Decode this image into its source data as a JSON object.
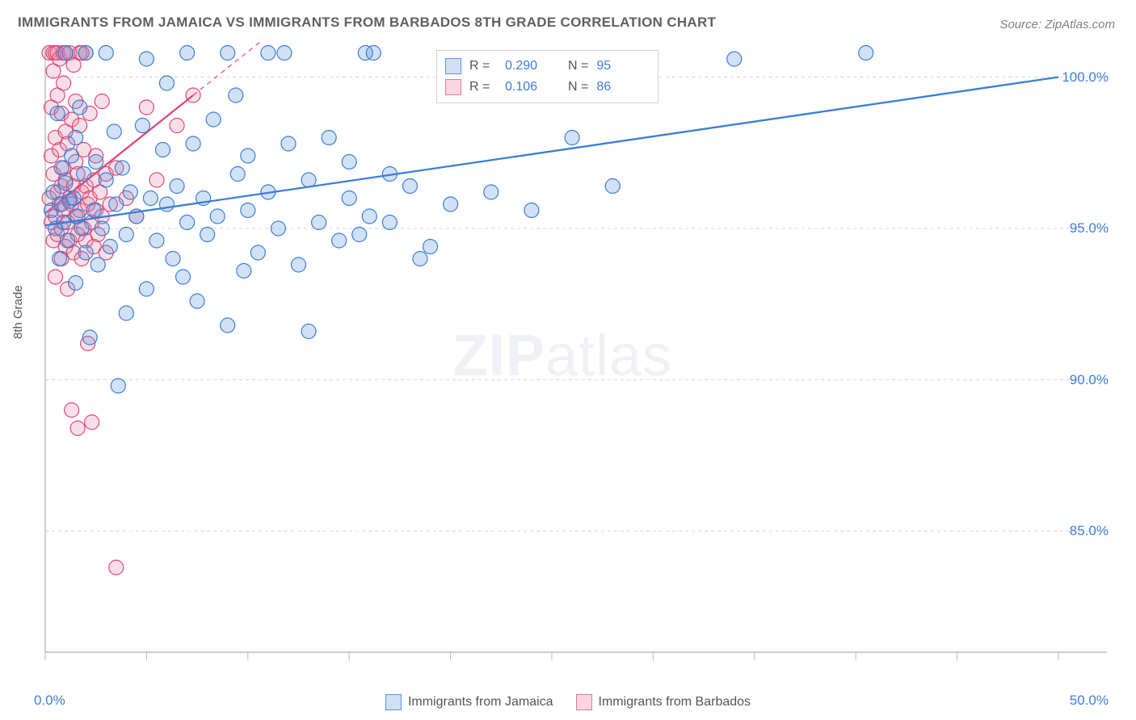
{
  "title": "IMMIGRANTS FROM JAMAICA VS IMMIGRANTS FROM BARBADOS 8TH GRADE CORRELATION CHART",
  "source": "Source: ZipAtlas.com",
  "ylabel": "8th Grade",
  "watermark_zip": "ZIP",
  "watermark_atlas": "atlas",
  "chart": {
    "type": "scatter",
    "xlim": [
      0,
      50
    ],
    "ylim": [
      81,
      101
    ],
    "xtick_positions": [
      0,
      5,
      10,
      15,
      20,
      25,
      30,
      35,
      40,
      45,
      50
    ],
    "ytick_values": [
      85,
      90,
      95,
      100
    ],
    "ytick_labels": [
      "85.0%",
      "90.0%",
      "95.0%",
      "100.0%"
    ],
    "x0_label": "0.0%",
    "xmax_label": "50.0%",
    "grid_color": "#d6d6d6",
    "axis_color": "#bbbbbb",
    "background": "#ffffff",
    "marker_radius": 9,
    "marker_stroke_width": 1.2,
    "marker_fill_opacity": 0.28,
    "trend_line_width": 2.3,
    "trend_dash_width": 1.2
  },
  "legend_top": {
    "r_label": "R =",
    "n_label": "N =",
    "series": [
      {
        "swatch_fill": "#cfe0f7",
        "swatch_border": "#5a95e0",
        "r": "0.290",
        "n": "95"
      },
      {
        "swatch_fill": "#fbd6e0",
        "swatch_border": "#e07c9a",
        "r": "0.106",
        "n": "86"
      }
    ]
  },
  "legend_bottom": {
    "items": [
      {
        "swatch_fill": "#cfe0f7",
        "swatch_border": "#5a95e0",
        "label": "Immigrants from Jamaica"
      },
      {
        "swatch_fill": "#fbd6e0",
        "swatch_border": "#e07c9a",
        "label": "Immigrants from Barbados"
      }
    ]
  },
  "series": [
    {
      "name": "jamaica",
      "stroke": "#3b7dd8",
      "fill": "#5a95e0",
      "trend": {
        "x1": 0,
        "y1": 95.1,
        "x2": 50,
        "y2": 100.0,
        "dash_from_x": 50
      },
      "points": [
        [
          0.3,
          95.6
        ],
        [
          0.4,
          96.2
        ],
        [
          0.5,
          95.0
        ],
        [
          0.6,
          98.8
        ],
        [
          0.7,
          94.0
        ],
        [
          0.8,
          95.8
        ],
        [
          0.8,
          97.0
        ],
        [
          0.9,
          95.2
        ],
        [
          1.0,
          96.5
        ],
        [
          1.0,
          100.8
        ],
        [
          1.1,
          94.6
        ],
        [
          1.2,
          95.9
        ],
        [
          1.3,
          97.4
        ],
        [
          1.4,
          96.0
        ],
        [
          1.5,
          93.2
        ],
        [
          1.5,
          98.0
        ],
        [
          1.6,
          95.4
        ],
        [
          1.7,
          99.0
        ],
        [
          1.8,
          95.0
        ],
        [
          1.9,
          96.8
        ],
        [
          2.0,
          94.2
        ],
        [
          2.0,
          100.8
        ],
        [
          2.2,
          91.4
        ],
        [
          2.4,
          95.6
        ],
        [
          2.5,
          97.2
        ],
        [
          2.6,
          93.8
        ],
        [
          2.8,
          95.0
        ],
        [
          3.0,
          96.6
        ],
        [
          3.0,
          100.8
        ],
        [
          3.2,
          94.4
        ],
        [
          3.4,
          98.2
        ],
        [
          3.5,
          95.8
        ],
        [
          3.6,
          89.8
        ],
        [
          3.8,
          97.0
        ],
        [
          4.0,
          94.8
        ],
        [
          4.0,
          92.2
        ],
        [
          4.2,
          96.2
        ],
        [
          4.5,
          95.4
        ],
        [
          4.8,
          98.4
        ],
        [
          5.0,
          93.0
        ],
        [
          5.0,
          100.6
        ],
        [
          5.2,
          96.0
        ],
        [
          5.5,
          94.6
        ],
        [
          5.8,
          97.6
        ],
        [
          6.0,
          95.8
        ],
        [
          6.0,
          99.8
        ],
        [
          6.3,
          94.0
        ],
        [
          6.5,
          96.4
        ],
        [
          6.8,
          93.4
        ],
        [
          7.0,
          95.2
        ],
        [
          7.0,
          100.8
        ],
        [
          7.3,
          97.8
        ],
        [
          7.5,
          92.6
        ],
        [
          7.8,
          96.0
        ],
        [
          8.0,
          94.8
        ],
        [
          8.3,
          98.6
        ],
        [
          8.5,
          95.4
        ],
        [
          9.0,
          91.8
        ],
        [
          9.0,
          100.8
        ],
        [
          9.4,
          99.4
        ],
        [
          9.5,
          96.8
        ],
        [
          9.8,
          93.6
        ],
        [
          10.0,
          95.6
        ],
        [
          10.0,
          97.4
        ],
        [
          10.5,
          94.2
        ],
        [
          11.0,
          96.2
        ],
        [
          11.0,
          100.8
        ],
        [
          11.5,
          95.0
        ],
        [
          11.8,
          100.8
        ],
        [
          12.0,
          97.8
        ],
        [
          12.5,
          93.8
        ],
        [
          13.0,
          96.6
        ],
        [
          13.0,
          91.6
        ],
        [
          13.5,
          95.2
        ],
        [
          14.0,
          98.0
        ],
        [
          14.5,
          94.6
        ],
        [
          15.0,
          97.2
        ],
        [
          15.0,
          96.0
        ],
        [
          15.5,
          94.8
        ],
        [
          15.8,
          100.8
        ],
        [
          16.0,
          95.4
        ],
        [
          16.2,
          100.8
        ],
        [
          17.0,
          95.2
        ],
        [
          17.0,
          96.8
        ],
        [
          18.0,
          96.4
        ],
        [
          18.5,
          94.0
        ],
        [
          19.0,
          94.4
        ],
        [
          20.0,
          95.8
        ],
        [
          20.5,
          100.4
        ],
        [
          22.0,
          96.2
        ],
        [
          24.0,
          95.6
        ],
        [
          26.0,
          98.0
        ],
        [
          28.0,
          96.4
        ],
        [
          40.5,
          100.8
        ],
        [
          34.0,
          100.6
        ]
      ]
    },
    {
      "name": "barbados",
      "stroke": "#e04876",
      "fill": "#e68aa6",
      "trend": {
        "x1": 0,
        "y1": 95.5,
        "x2": 7.3,
        "y2": 99.4,
        "dash_from_x": 7.3,
        "dash_to_x": 15,
        "dash_to_y": 103.5
      },
      "points": [
        [
          0.2,
          96.0
        ],
        [
          0.2,
          100.8
        ],
        [
          0.3,
          95.2
        ],
        [
          0.3,
          97.4
        ],
        [
          0.3,
          99.0
        ],
        [
          0.4,
          94.6
        ],
        [
          0.4,
          96.8
        ],
        [
          0.4,
          100.2
        ],
        [
          0.4,
          100.8
        ],
        [
          0.5,
          95.4
        ],
        [
          0.5,
          98.0
        ],
        [
          0.5,
          93.4
        ],
        [
          0.5,
          100.8
        ],
        [
          0.6,
          96.2
        ],
        [
          0.6,
          94.8
        ],
        [
          0.6,
          99.4
        ],
        [
          0.6,
          100.8
        ],
        [
          0.7,
          95.8
        ],
        [
          0.7,
          97.6
        ],
        [
          0.7,
          100.6
        ],
        [
          0.8,
          94.0
        ],
        [
          0.8,
          96.4
        ],
        [
          0.8,
          98.8
        ],
        [
          0.8,
          95.0
        ],
        [
          0.9,
          97.0
        ],
        [
          0.9,
          95.6
        ],
        [
          0.9,
          99.8
        ],
        [
          0.9,
          100.8
        ],
        [
          1.0,
          94.4
        ],
        [
          1.0,
          96.6
        ],
        [
          1.0,
          98.2
        ],
        [
          1.0,
          100.8
        ],
        [
          1.1,
          95.2
        ],
        [
          1.1,
          97.8
        ],
        [
          1.1,
          93.0
        ],
        [
          1.2,
          96.0
        ],
        [
          1.2,
          94.6
        ],
        [
          1.2,
          100.8
        ],
        [
          1.3,
          95.8
        ],
        [
          1.3,
          98.6
        ],
        [
          1.3,
          89.0
        ],
        [
          1.4,
          96.4
        ],
        [
          1.4,
          94.2
        ],
        [
          1.4,
          100.4
        ],
        [
          1.5,
          95.4
        ],
        [
          1.5,
          97.2
        ],
        [
          1.5,
          99.2
        ],
        [
          1.6,
          94.8
        ],
        [
          1.6,
          96.8
        ],
        [
          1.6,
          88.4
        ],
        [
          1.7,
          95.6
        ],
        [
          1.7,
          98.4
        ],
        [
          1.7,
          100.8
        ],
        [
          1.8,
          94.0
        ],
        [
          1.8,
          96.2
        ],
        [
          1.8,
          100.8
        ],
        [
          1.9,
          95.0
        ],
        [
          1.9,
          97.6
        ],
        [
          2.0,
          94.6
        ],
        [
          2.0,
          96.4
        ],
        [
          2.0,
          100.8
        ],
        [
          2.1,
          95.8
        ],
        [
          2.1,
          91.2
        ],
        [
          2.2,
          96.0
        ],
        [
          2.2,
          98.8
        ],
        [
          2.3,
          95.2
        ],
        [
          2.3,
          88.6
        ],
        [
          2.4,
          96.6
        ],
        [
          2.4,
          94.4
        ],
        [
          2.5,
          97.4
        ],
        [
          2.5,
          95.6
        ],
        [
          2.6,
          94.8
        ],
        [
          2.7,
          96.2
        ],
        [
          2.8,
          95.4
        ],
        [
          2.8,
          99.2
        ],
        [
          3.0,
          96.8
        ],
        [
          3.0,
          94.2
        ],
        [
          3.2,
          95.8
        ],
        [
          3.5,
          83.8
        ],
        [
          3.5,
          97.0
        ],
        [
          4.0,
          96.0
        ],
        [
          4.5,
          95.4
        ],
        [
          5.0,
          99.0
        ],
        [
          5.5,
          96.6
        ],
        [
          6.5,
          98.4
        ],
        [
          7.3,
          99.4
        ]
      ]
    }
  ]
}
